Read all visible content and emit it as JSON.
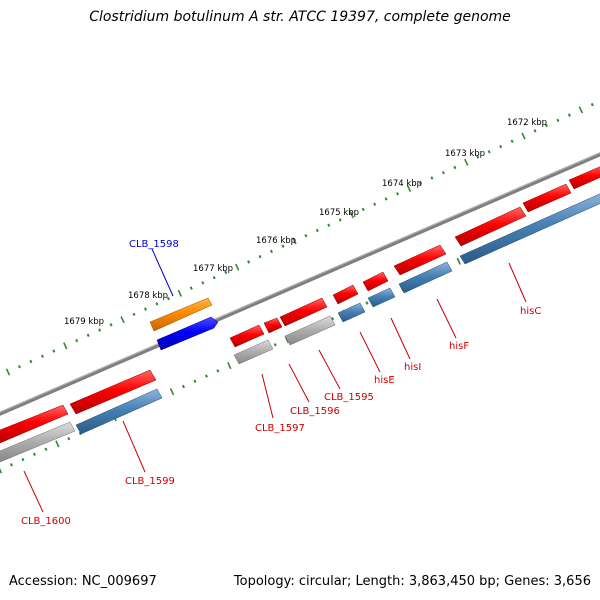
{
  "title": "Clostridium botulinum A str. ATCC 19397, complete genome",
  "footer": {
    "accession": "Accession: NC_009697",
    "summary": "Topology: circular; Length: 3,863,450 bp; Genes: 3,656"
  },
  "colors": {
    "backbone": "#808080",
    "ticks": "#2e8b2e",
    "gene_forward": "#ff0000",
    "gene_reverse": "#ff0000",
    "cds_forward": "#4682b4",
    "cds_grey": "#b0b0b0",
    "highlight_gene": "#ff8c00",
    "highlight_cds": "#0000ff",
    "label_red": "#cc0000",
    "label_blue": "#0000cc"
  },
  "ruler": {
    "unit": "kbp",
    "ticks": [
      {
        "label": "1672 kbp",
        "kbp": 1672
      },
      {
        "label": "1673 kbp",
        "kbp": 1673
      },
      {
        "label": "1674 kbp",
        "kbp": 1674
      },
      {
        "label": "1675 kbp",
        "kbp": 1675
      },
      {
        "label": "1676 kbp",
        "kbp": 1676
      },
      {
        "label": "1677 kbp",
        "kbp": 1677
      },
      {
        "label": "1678 kbp",
        "kbp": 1678
      },
      {
        "label": "1679 kbp",
        "kbp": 1679
      }
    ]
  },
  "genes": [
    {
      "label": "CLB_1598",
      "color": "label_blue",
      "strand": "+"
    },
    {
      "label": "hisC",
      "color": "label_red",
      "strand": "-"
    },
    {
      "label": "hisF",
      "color": "label_red",
      "strand": "-"
    },
    {
      "label": "hisI",
      "color": "label_red",
      "strand": "-"
    },
    {
      "label": "hisE",
      "color": "label_red",
      "strand": "-"
    },
    {
      "label": "CLB_1595",
      "color": "label_red",
      "strand": "-"
    },
    {
      "label": "CLB_1596",
      "color": "label_red",
      "strand": "-"
    },
    {
      "label": "CLB_1597",
      "color": "label_red",
      "strand": "-"
    },
    {
      "label": "CLB_1599",
      "color": "label_red",
      "strand": "-"
    },
    {
      "label": "CLB_1600",
      "color": "label_red",
      "strand": "-"
    }
  ]
}
